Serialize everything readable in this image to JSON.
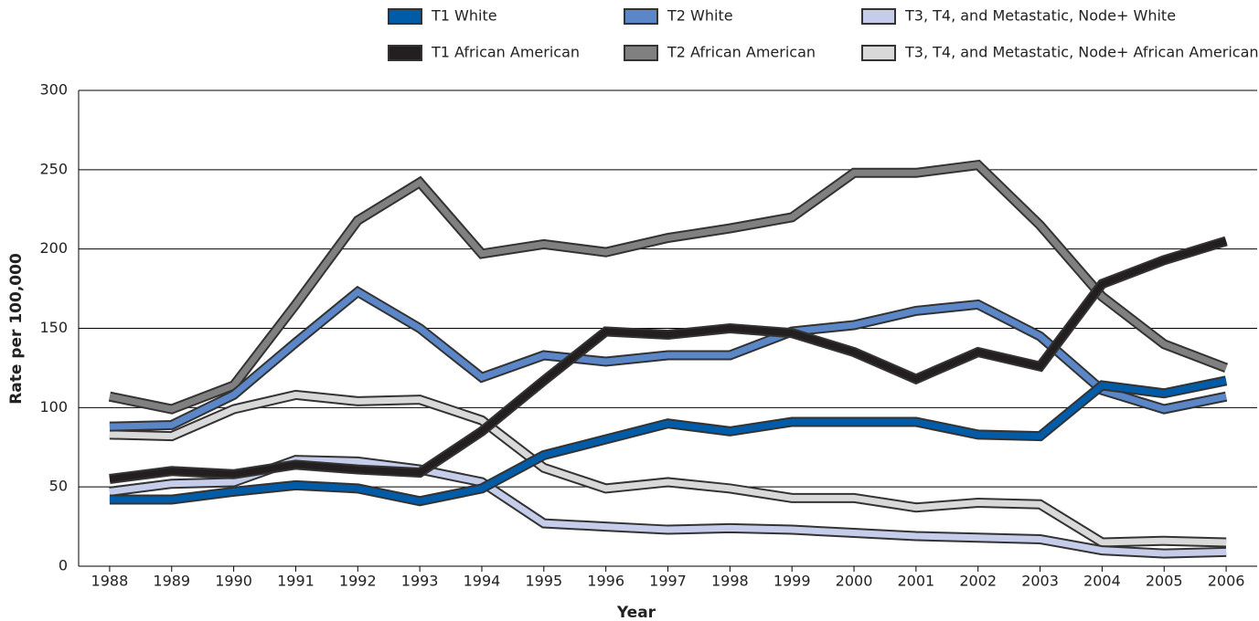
{
  "chart_data": {
    "type": "line",
    "xlabel": "Year",
    "ylabel": "Rate per 100,000",
    "x": [
      1988,
      1989,
      1990,
      1991,
      1992,
      1993,
      1994,
      1995,
      1996,
      1997,
      1998,
      1999,
      2000,
      2001,
      2002,
      2003,
      2004,
      2005,
      2006
    ],
    "xlim": [
      1987.5,
      2006.5
    ],
    "xticks": [
      1988,
      1989,
      1990,
      1991,
      1992,
      1993,
      1994,
      1995,
      1996,
      1997,
      1998,
      1999,
      2000,
      2001,
      2002,
      2003,
      2004,
      2005,
      2006
    ],
    "ylim": [
      0,
      300
    ],
    "yticks": [
      0,
      50,
      100,
      150,
      200,
      250,
      300
    ],
    "grid": true,
    "legend": "top",
    "series": [
      {
        "name": "T1 White",
        "color": "#005ca8",
        "values": [
          42,
          42,
          47,
          51,
          49,
          41,
          49,
          70,
          80,
          90,
          85,
          91,
          91,
          91,
          83,
          82,
          114,
          109,
          117
        ]
      },
      {
        "name": "T1 African American",
        "color": "#231f20",
        "values": [
          55,
          60,
          58,
          64,
          61,
          59,
          85,
          117,
          148,
          146,
          150,
          147,
          135,
          118,
          135,
          126,
          178,
          193,
          205
        ]
      },
      {
        "name": "T2 White",
        "color": "#5b87c8",
        "values": [
          88,
          89,
          108,
          141,
          173,
          150,
          119,
          133,
          129,
          133,
          133,
          148,
          152,
          161,
          165,
          145,
          111,
          99,
          107
        ]
      },
      {
        "name": "T2 African American",
        "color": "#808080",
        "values": [
          107,
          99,
          114,
          165,
          218,
          242,
          197,
          203,
          198,
          207,
          213,
          220,
          248,
          248,
          253,
          215,
          170,
          140,
          125
        ]
      },
      {
        "name": "T3, T4, and Metastatic, Node+ White",
        "color": "#c5cdea",
        "values": [
          47,
          52,
          53,
          67,
          66,
          61,
          53,
          27,
          25,
          23,
          24,
          23,
          21,
          19,
          18,
          17,
          10,
          8,
          9
        ]
      },
      {
        "name": "T3, T4, and Metastatic, Node+ African American",
        "color": "#d9d9d9",
        "values": [
          83,
          82,
          99,
          108,
          104,
          105,
          92,
          62,
          49,
          53,
          49,
          43,
          43,
          37,
          40,
          39,
          15,
          16,
          15
        ]
      }
    ]
  }
}
